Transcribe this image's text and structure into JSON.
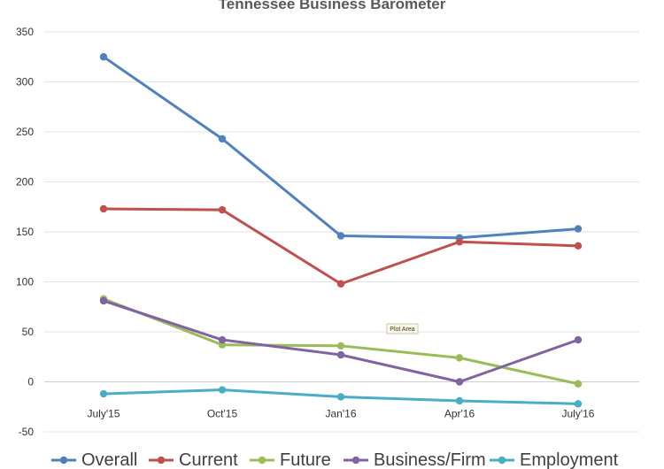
{
  "chart_data": {
    "type": "line",
    "title": "Tennessee Business Barometer",
    "categories": [
      "July'15",
      "Oct'15",
      "Jan'16",
      "Apr'16",
      "July'16"
    ],
    "ylim": [
      -50,
      350
    ],
    "yticks": [
      350,
      300,
      250,
      200,
      150,
      100,
      50,
      0,
      -50
    ],
    "grid": true,
    "legend_position": "bottom",
    "series": [
      {
        "name": "Overall",
        "color": "#4f81bd",
        "values": [
          325,
          243,
          146,
          144,
          153
        ]
      },
      {
        "name": "Current",
        "color": "#c0504d",
        "values": [
          173,
          172,
          98,
          140,
          136
        ]
      },
      {
        "name": "Future",
        "color": "#9bbb59",
        "values": [
          83,
          37,
          36,
          24,
          -2
        ]
      },
      {
        "name": "Business/Firm",
        "color": "#8064a2",
        "values": [
          81,
          42,
          27,
          0,
          42
        ]
      },
      {
        "name": "Employment",
        "color": "#4bacc6",
        "values": [
          -12,
          -8,
          -15,
          -19,
          -22
        ]
      }
    ],
    "annotations": [
      {
        "text": "Plot Area"
      }
    ]
  }
}
